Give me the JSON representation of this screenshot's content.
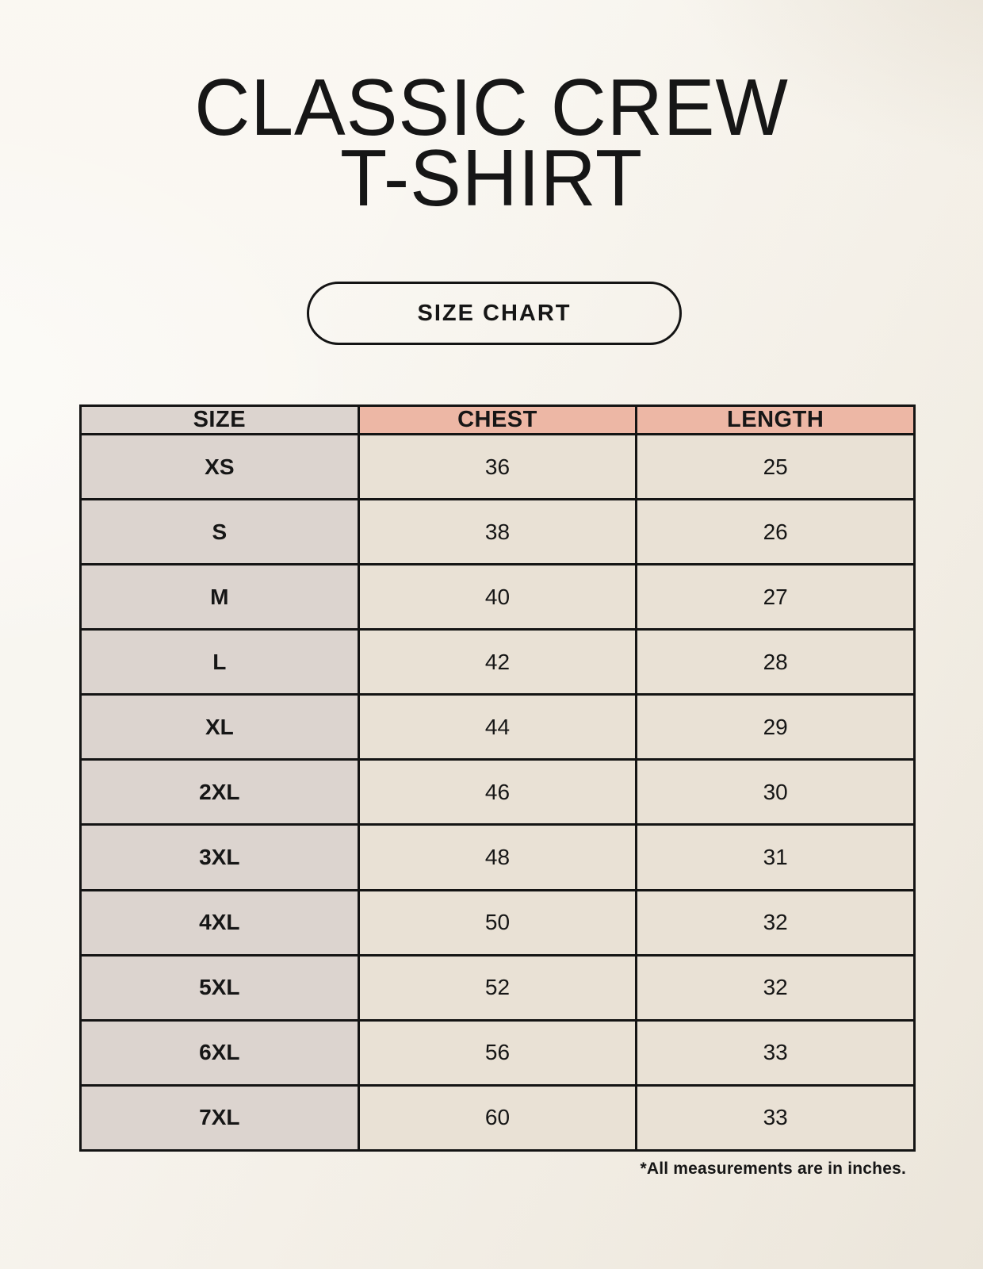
{
  "page": {
    "title_line1": "CLASSIC CREW",
    "title_line2": "T-SHIRT",
    "badge_label": "SIZE CHART",
    "footnote": "*All measurements are in inches."
  },
  "table": {
    "columns": [
      "SIZE",
      "CHEST",
      "LENGTH"
    ],
    "rows": [
      {
        "size": "XS",
        "chest": "36",
        "length": "25"
      },
      {
        "size": "S",
        "chest": "38",
        "length": "26"
      },
      {
        "size": "M",
        "chest": "40",
        "length": "27"
      },
      {
        "size": "L",
        "chest": "42",
        "length": "28"
      },
      {
        "size": "XL",
        "chest": "44",
        "length": "29"
      },
      {
        "size": "2XL",
        "chest": "46",
        "length": "30"
      },
      {
        "size": "3XL",
        "chest": "48",
        "length": "31"
      },
      {
        "size": "4XL",
        "chest": "50",
        "length": "32"
      },
      {
        "size": "5XL",
        "chest": "52",
        "length": "32"
      },
      {
        "size": "6XL",
        "chest": "56",
        "length": "33"
      },
      {
        "size": "7XL",
        "chest": "60",
        "length": "33"
      }
    ]
  },
  "colors": {
    "background": "#f6f3ec",
    "header_accent": "#edb7a5",
    "size_column": "#dcd4cf",
    "cell": "#e9e1d5",
    "border": "#141414",
    "text": "#161616"
  }
}
